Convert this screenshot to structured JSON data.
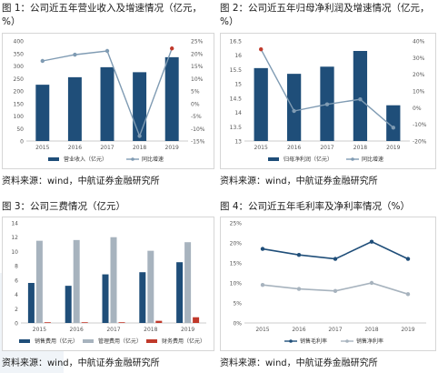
{
  "charts": [
    {
      "title": "图 1：公司近五年营业收入及增速情况（亿元，%）",
      "source": "资料来源：wind，中航证券金融研究所",
      "chart_data": {
        "type": "bar+line",
        "categories": [
          "2015",
          "2016",
          "2017",
          "2018",
          "2019"
        ],
        "series": [
          {
            "name": "营业收入（亿元）",
            "type": "bar",
            "axis": "left",
            "values": [
              225,
              255,
              295,
              275,
              335
            ]
          },
          {
            "name": "同比增速",
            "type": "line",
            "axis": "right",
            "values": [
              17,
              19.5,
              21,
              -13,
              22
            ]
          }
        ],
        "ylim_left": [
          0,
          400
        ],
        "yticks_left": [
          "0",
          "50",
          "100",
          "150",
          "200",
          "250",
          "300",
          "350",
          "400"
        ],
        "ylim_right": [
          -15,
          25
        ],
        "yticks_right": [
          "-15%",
          "-10%",
          "-5%",
          "0%",
          "5%",
          "10%",
          "15%",
          "20%",
          "25%"
        ],
        "legend": "bottom"
      }
    },
    {
      "title": "图 2：公司近五年归母净利润及增速情况（亿元，%）",
      "source": "资料来源：wind，中航证券金融研究所",
      "chart_data": {
        "type": "bar+line",
        "categories": [
          "2015",
          "2016",
          "2017",
          "2018",
          "2019"
        ],
        "series": [
          {
            "name": "归母净利润（亿元）",
            "type": "bar",
            "axis": "left",
            "values": [
              15.55,
              15.35,
              15.6,
              16.15,
              14.25
            ]
          },
          {
            "name": "同比增速",
            "type": "line",
            "axis": "right",
            "values": [
              35,
              -2,
              2,
              5,
              -12
            ]
          }
        ],
        "ylim_left": [
          13,
          16.5
        ],
        "yticks_left": [
          "13",
          "13.5",
          "14",
          "14.5",
          "15",
          "15.5",
          "16",
          "16.5"
        ],
        "ylim_right": [
          -20,
          40
        ],
        "yticks_right": [
          "-20%",
          "-10%",
          "0%",
          "10%",
          "20%",
          "30%",
          "40%"
        ],
        "legend": "bottom"
      }
    },
    {
      "title": "图 3：公司三费情况（亿元）",
      "source": "资料来源：wind，中航证券金融研究所",
      "chart_data": {
        "type": "bar",
        "categories": [
          "2015",
          "2016",
          "2017",
          "2018",
          "2019"
        ],
        "series": [
          {
            "name": "销售费用（亿元）",
            "values": [
              5.6,
              5.2,
              6.8,
              7.1,
              8.5
            ]
          },
          {
            "name": "管理费用（亿元）",
            "values": [
              11.5,
              11.6,
              12.0,
              10.1,
              11.3
            ]
          },
          {
            "name": "财务费用（亿元）",
            "values": [
              0.1,
              0.1,
              0.1,
              0.3,
              0.8
            ]
          }
        ],
        "ylim": [
          0,
          14
        ],
        "yticks": [
          "0",
          "2",
          "4",
          "6",
          "8",
          "10",
          "12",
          "14"
        ],
        "legend": "bottom"
      }
    },
    {
      "title": "图 4：公司近五年毛利率及净利率情况（%）",
      "source": "资料来源：wind，中航证券金融研究所",
      "chart_data": {
        "type": "line",
        "categories": [
          "2015",
          "2016",
          "2017",
          "2018",
          "2019"
        ],
        "series": [
          {
            "name": "销售毛利率",
            "values": [
              18.5,
              17.0,
              16.0,
              20.3,
              16.0
            ]
          },
          {
            "name": "销售净利率",
            "values": [
              9.5,
              8.5,
              8.0,
              10.0,
              7.2
            ]
          }
        ],
        "ylim": [
          0,
          25
        ],
        "yticks": [
          "0%",
          "5%",
          "10%",
          "15%",
          "20%",
          "25%"
        ],
        "legend": "bottom"
      }
    }
  ],
  "colors": {
    "navy": "#1f4e79",
    "steel": "#7f9bb3",
    "gray": "#a7b3be",
    "red": "#c0392b",
    "axis": "#555555"
  }
}
